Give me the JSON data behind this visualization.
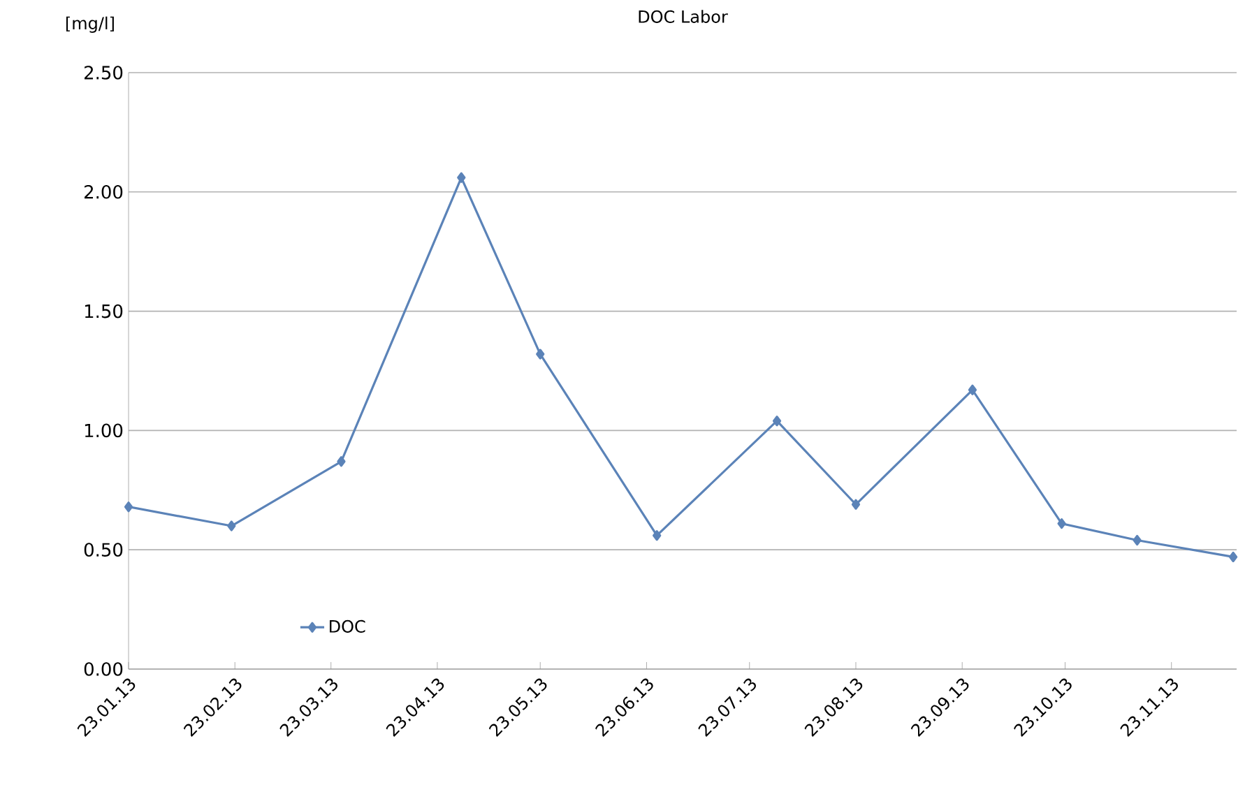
{
  "chart_data": {
    "type": "line",
    "title": "DOC Labor",
    "ylabel": "[mg/l]",
    "x": [
      "2013-01-23",
      "2013-02-22",
      "2013-03-26",
      "2013-04-30",
      "2013-05-23",
      "2013-06-26",
      "2013-07-31",
      "2013-08-23",
      "2013-09-26",
      "2013-10-22",
      "2013-11-13",
      "2013-12-11"
    ],
    "series": [
      {
        "name": "DOC",
        "color": "#5b83b8",
        "values": [
          0.68,
          0.6,
          0.87,
          2.06,
          1.32,
          0.56,
          1.04,
          0.69,
          1.17,
          0.61,
          0.54,
          0.47
        ]
      }
    ],
    "xlim": [
      "2013-01-23",
      "2013-12-12"
    ],
    "xticks": [
      {
        "value": "2013-01-23",
        "label": "23.01.13"
      },
      {
        "value": "2013-02-23",
        "label": "23.02.13"
      },
      {
        "value": "2013-03-23",
        "label": "23.03.13"
      },
      {
        "value": "2013-04-23",
        "label": "23.04.13"
      },
      {
        "value": "2013-05-23",
        "label": "23.05.13"
      },
      {
        "value": "2013-06-23",
        "label": "23.06.13"
      },
      {
        "value": "2013-07-23",
        "label": "23.07.13"
      },
      {
        "value": "2013-08-23",
        "label": "23.08.13"
      },
      {
        "value": "2013-09-23",
        "label": "23.09.13"
      },
      {
        "value": "2013-10-23",
        "label": "23.10.13"
      },
      {
        "value": "2013-11-23",
        "label": "23.11.13"
      }
    ],
    "ylim": [
      0,
      2.5
    ],
    "yticks": [
      {
        "value": 0,
        "label": "0.00"
      },
      {
        "value": 0.5,
        "label": "0.50"
      },
      {
        "value": 1,
        "label": "1.00"
      },
      {
        "value": 1.5,
        "label": "1.50"
      },
      {
        "value": 2,
        "label": "2.00"
      },
      {
        "value": 2.5,
        "label": "2.50"
      }
    ],
    "grid": "y",
    "legend": "bottom left",
    "marker": "diamond",
    "line_style": "solid"
  }
}
